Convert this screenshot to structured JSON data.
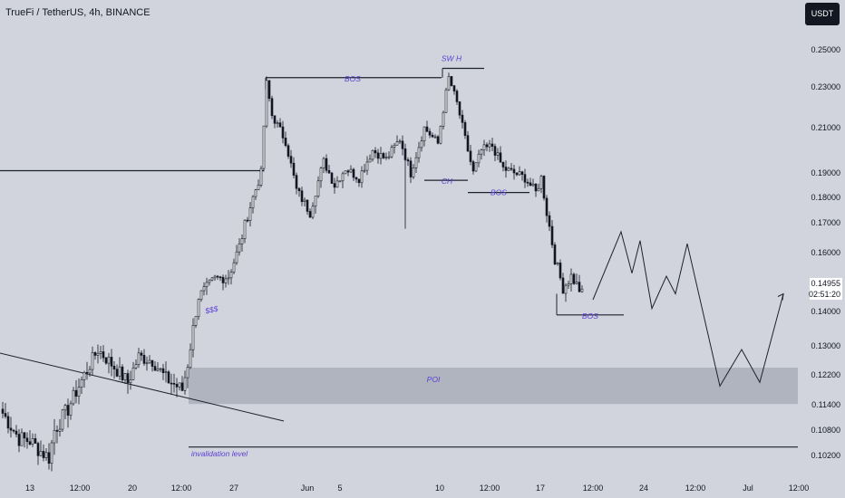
{
  "header": {
    "symbol_title": "TrueFi / TetherUS, 4h, BINANCE",
    "currency_badge": "USDT"
  },
  "colors": {
    "background": "#d1d4dc",
    "candle": "#131722",
    "line": "#1e222d",
    "annotation_text": "#5b3fd6",
    "poi_zone": "#a3a7b1",
    "price_label_bg": "#ffffff"
  },
  "chart_data": {
    "type": "candlestick",
    "symbol": "TrueFi / TetherUS",
    "timeframe": "4h",
    "exchange": "BINANCE",
    "quote_currency": "USDT",
    "y_axis": {
      "ticks": [
        0.25,
        0.23,
        0.21,
        0.19,
        0.18,
        0.17,
        0.16,
        0.14,
        0.13,
        0.122,
        0.114,
        0.108,
        0.102
      ],
      "tick_labels": [
        "0.25000",
        "0.23000",
        "0.21000",
        "0.19000",
        "0.18000",
        "0.17000",
        "0.16000",
        "0.14000",
        "0.13000",
        "0.12200",
        "0.11400",
        "0.10800",
        "0.10200"
      ],
      "range": [
        0.099,
        0.262
      ]
    },
    "x_axis": {
      "tick_labels": [
        "13",
        "12:00",
        "20",
        "12:00",
        "27",
        "Jun",
        "5",
        "10",
        "12:00",
        "17",
        "12:00",
        "24",
        "12:00",
        "Jul",
        "12:00"
      ]
    },
    "current_price": {
      "value": 0.14955,
      "label": "0.14955",
      "countdown": "02:51:20"
    },
    "price_path": [
      {
        "bar": 0,
        "price": 0.112
      },
      {
        "bar": 6,
        "price": 0.106
      },
      {
        "bar": 10,
        "price": 0.1055
      },
      {
        "bar": 14,
        "price": 0.103
      },
      {
        "bar": 17,
        "price": 0.1015
      },
      {
        "bar": 19,
        "price": 0.108
      },
      {
        "bar": 24,
        "price": 0.113
      },
      {
        "bar": 30,
        "price": 0.122
      },
      {
        "bar": 35,
        "price": 0.129
      },
      {
        "bar": 40,
        "price": 0.125
      },
      {
        "bar": 46,
        "price": 0.12
      },
      {
        "bar": 50,
        "price": 0.127
      },
      {
        "bar": 55,
        "price": 0.126
      },
      {
        "bar": 60,
        "price": 0.121
      },
      {
        "bar": 66,
        "price": 0.118
      },
      {
        "bar": 68,
        "price": 0.125
      },
      {
        "bar": 72,
        "price": 0.145
      },
      {
        "bar": 78,
        "price": 0.151
      },
      {
        "bar": 83,
        "price": 0.152
      },
      {
        "bar": 87,
        "price": 0.162
      },
      {
        "bar": 92,
        "price": 0.18
      },
      {
        "bar": 95,
        "price": 0.19
      },
      {
        "bar": 97,
        "price": 0.232
      },
      {
        "bar": 99,
        "price": 0.216
      },
      {
        "bar": 104,
        "price": 0.204
      },
      {
        "bar": 108,
        "price": 0.183
      },
      {
        "bar": 113,
        "price": 0.174
      },
      {
        "bar": 118,
        "price": 0.195
      },
      {
        "bar": 122,
        "price": 0.185
      },
      {
        "bar": 126,
        "price": 0.192
      },
      {
        "bar": 131,
        "price": 0.188
      },
      {
        "bar": 136,
        "price": 0.2
      },
      {
        "bar": 141,
        "price": 0.196
      },
      {
        "bar": 146,
        "price": 0.205
      },
      {
        "bar": 150,
        "price": 0.19
      },
      {
        "bar": 155,
        "price": 0.21
      },
      {
        "bar": 160,
        "price": 0.203
      },
      {
        "bar": 164,
        "price": 0.235
      },
      {
        "bar": 167,
        "price": 0.222
      },
      {
        "bar": 170,
        "price": 0.205
      },
      {
        "bar": 173,
        "price": 0.19
      },
      {
        "bar": 176,
        "price": 0.2
      },
      {
        "bar": 180,
        "price": 0.202
      },
      {
        "bar": 184,
        "price": 0.192
      },
      {
        "bar": 188,
        "price": 0.19
      },
      {
        "bar": 192,
        "price": 0.188
      },
      {
        "bar": 196,
        "price": 0.182
      },
      {
        "bar": 198,
        "price": 0.188
      },
      {
        "bar": 200,
        "price": 0.174
      },
      {
        "bar": 203,
        "price": 0.158
      },
      {
        "bar": 206,
        "price": 0.148
      },
      {
        "bar": 209,
        "price": 0.152
      },
      {
        "bar": 213,
        "price": 0.146
      }
    ],
    "drawings": {
      "horizontal_levels": [
        {
          "name": "range-high-level",
          "price": 0.191
        },
        {
          "name": "bos-top-level",
          "price": 0.235
        },
        {
          "name": "sw-h-level",
          "price": 0.24
        },
        {
          "name": "ch-level",
          "price": 0.187
        },
        {
          "name": "bos-right-level",
          "price": 0.182
        },
        {
          "name": "bos-bottom-level",
          "price": 0.139
        },
        {
          "name": "invalidation-level",
          "price": 0.104
        }
      ],
      "poi_zone": {
        "price_top": 0.124,
        "price_bottom": 0.1142
      },
      "labels": [
        {
          "name": "label-bos-top",
          "text": "BOS"
        },
        {
          "name": "label-sw-h",
          "text": "SW H"
        },
        {
          "name": "label-ch",
          "text": "CH"
        },
        {
          "name": "label-bos-right",
          "text": "BOS"
        },
        {
          "name": "label-bos-bottom",
          "text": "BOS"
        },
        {
          "name": "label-sss",
          "text": "$$$"
        },
        {
          "name": "label-poi",
          "text": "POI"
        },
        {
          "name": "label-invalidation",
          "text": "invalidation level"
        }
      ],
      "projection_path": [
        0.144,
        0.167,
        0.153,
        0.164,
        0.141,
        0.152,
        0.146,
        0.163,
        0.119,
        0.129,
        0.12,
        0.146
      ]
    }
  }
}
